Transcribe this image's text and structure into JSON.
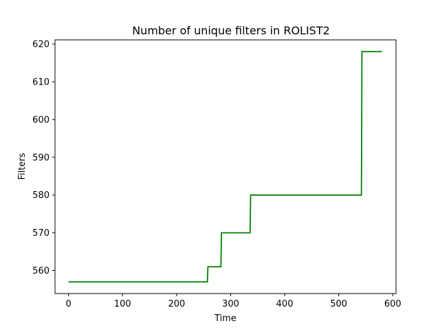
{
  "chart_data": {
    "type": "line",
    "title": "Number of unique filters in ROLIST2",
    "xlabel": "Time",
    "ylabel": "Filters",
    "xlim": [
      -25,
      606
    ],
    "ylim": [
      553.9,
      621.1
    ],
    "x_ticks": [
      0,
      100,
      200,
      300,
      400,
      500,
      600
    ],
    "y_ticks": [
      560,
      570,
      580,
      590,
      600,
      610,
      620
    ],
    "grid": false,
    "legend": "none",
    "series": [
      {
        "color": "#008000",
        "points": [
          [
            0,
            557
          ],
          [
            257,
            557
          ],
          [
            258,
            561
          ],
          [
            282,
            561
          ],
          [
            283,
            570
          ],
          [
            336,
            570
          ],
          [
            337,
            580
          ],
          [
            542,
            580
          ],
          [
            543,
            618
          ],
          [
            580,
            618
          ]
        ]
      }
    ]
  }
}
